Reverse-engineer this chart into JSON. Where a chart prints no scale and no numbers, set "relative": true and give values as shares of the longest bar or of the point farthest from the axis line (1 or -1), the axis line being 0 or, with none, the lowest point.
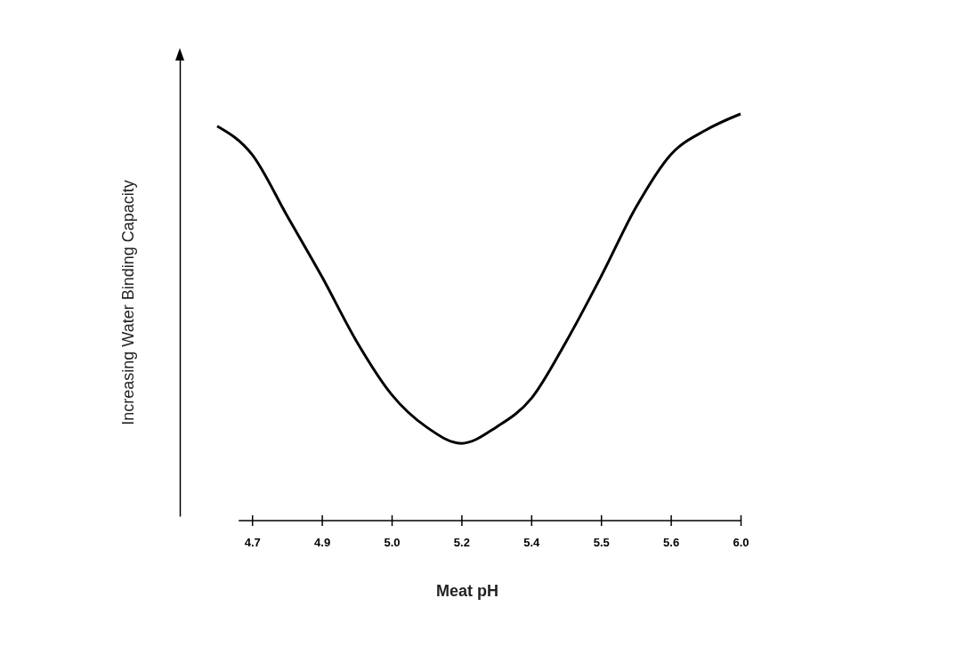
{
  "chart_data": {
    "type": "line",
    "relative": true,
    "xlabel": "Meat pH",
    "ylabel": "Increasing Water Binding Capacity",
    "categories": [
      null,
      "4.7",
      null,
      "4.9",
      null,
      "5.0",
      null,
      "5.2",
      null,
      "5.4",
      null,
      "5.5",
      null,
      "5.6",
      null,
      "6.0"
    ],
    "series": [
      {
        "color": "#000000",
        "values": [
          0.97,
          0.9,
          0.75,
          0.6,
          0.44,
          0.31,
          0.23,
          0.19,
          0.23,
          0.3,
          0.44,
          0.6,
          0.77,
          0.9,
          0.96,
          1
        ]
      }
    ],
    "marker": "none",
    "line_style": "solid",
    "grid": false
  }
}
